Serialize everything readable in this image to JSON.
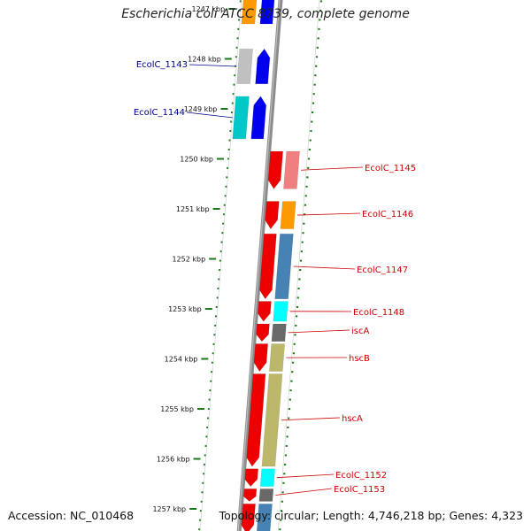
{
  "title": "Escherichia coli ATCC 8739, complete genome",
  "accession_text": "Accession: NC_010468",
  "topology_text": "Topology: circular; Length: 4,746,218 bp; Genes: 4,323",
  "colors": {
    "backbone": "#8c8c8c",
    "tick_dots": "#1a7a1a",
    "left_label": "#00008b",
    "right_label": "#cc0000"
  },
  "ticks": [
    {
      "label": "1247 kbp"
    },
    {
      "label": "1248 kbp"
    },
    {
      "label": "1249 kbp"
    },
    {
      "label": "1250 kbp"
    },
    {
      "label": "1251 kbp"
    },
    {
      "label": "1252 kbp"
    },
    {
      "label": "1253 kbp"
    },
    {
      "label": "1254 kbp"
    },
    {
      "label": "1255 kbp"
    },
    {
      "label": "1256 kbp"
    },
    {
      "label": "1257 kbp"
    }
  ],
  "genes": [
    {
      "label": "",
      "strand": "-",
      "start": 1246.6,
      "end": 1247.3,
      "color": "#ff9900",
      "arrow": "blue"
    },
    {
      "label": "EcolC_1143",
      "strand": "-",
      "start": 1247.8,
      "end": 1248.5,
      "color": "#c0c0c0",
      "arrow": "blue"
    },
    {
      "label": "EcolC_1144",
      "strand": "-",
      "start": 1248.75,
      "end": 1249.6,
      "color": "#00c8c8",
      "arrow": "blue"
    },
    {
      "label": "EcolC_1145",
      "strand": "+",
      "start": 1249.85,
      "end": 1250.6,
      "color": "#f08080",
      "arrow": "red"
    },
    {
      "label": "EcolC_1146",
      "strand": "+",
      "start": 1250.85,
      "end": 1251.4,
      "color": "#ff9900",
      "arrow": "red"
    },
    {
      "label": "EcolC_1147",
      "strand": "+",
      "start": 1251.5,
      "end": 1252.8,
      "color": "#4682b4",
      "arrow": "red"
    },
    {
      "label": "EcolC_1148",
      "strand": "+",
      "start": 1252.85,
      "end": 1253.25,
      "color": "#00ffff",
      "arrow": "red"
    },
    {
      "label": "iscA",
      "strand": "+",
      "start": 1253.3,
      "end": 1253.65,
      "color": "#696969",
      "arrow": "red"
    },
    {
      "label": "hscB",
      "strand": "+",
      "start": 1253.7,
      "end": 1254.25,
      "color": "#bdb76b",
      "arrow": "red"
    },
    {
      "label": "hscA",
      "strand": "+",
      "start": 1254.3,
      "end": 1256.15,
      "color": "#bdb76b",
      "arrow": "red"
    },
    {
      "label": "EcolC_1152",
      "strand": "+",
      "start": 1256.2,
      "end": 1256.55,
      "color": "#00ffff",
      "arrow": "red"
    },
    {
      "label": "EcolC_1153",
      "strand": "+",
      "start": 1256.6,
      "end": 1256.85,
      "color": "#696969",
      "arrow": "red"
    },
    {
      "label": "",
      "strand": "+",
      "start": 1256.9,
      "end": 1257.5,
      "color": "#4682b4",
      "arrow": "red"
    }
  ]
}
